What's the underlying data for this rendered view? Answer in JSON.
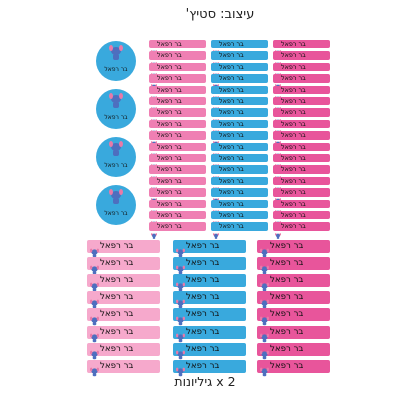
{
  "page": {
    "title": "עיצוב: סטיץ'",
    "footer": "2 x גיליונות"
  },
  "sticker": {
    "name": "בר רפאל",
    "icon": "stitch-character-icon"
  },
  "colors": {
    "blue": "#39a9dd",
    "pink": "#ef7fb3",
    "dark_pink": "#e8559b",
    "light_pink": "#f6a9cc"
  }
}
